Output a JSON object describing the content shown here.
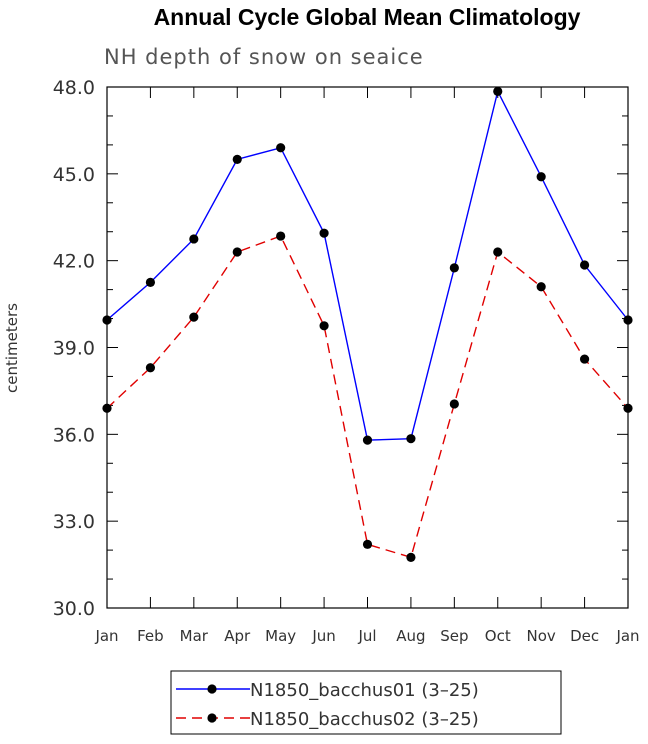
{
  "chart_data": {
    "type": "line",
    "title": "Annual Cycle Global Mean Climatology",
    "subtitle": "NH depth of snow on seaice",
    "xlabel": "",
    "ylabel": "centimeters",
    "ylim": [
      30.0,
      48.0
    ],
    "yticks": [
      "30.0",
      "33.0",
      "36.0",
      "39.0",
      "42.0",
      "45.0",
      "48.0"
    ],
    "ytick_values": [
      30,
      33,
      36,
      39,
      42,
      45,
      48
    ],
    "categories": [
      "Jan",
      "Feb",
      "Mar",
      "Apr",
      "May",
      "Jun",
      "Jul",
      "Aug",
      "Sep",
      "Oct",
      "Nov",
      "Dec",
      "Jan"
    ],
    "grid": false,
    "legend_position": "bottom",
    "series": [
      {
        "name": "N1850_bacchus01 (3–25)",
        "color": "#0000ff",
        "dash": "solid",
        "values": [
          39.95,
          41.25,
          42.75,
          45.5,
          45.9,
          42.95,
          35.8,
          35.85,
          41.75,
          47.85,
          44.9,
          41.85,
          39.95
        ]
      },
      {
        "name": "N1850_bacchus02 (3–25)",
        "color": "#e00000",
        "dash": "dashed",
        "values": [
          36.9,
          38.3,
          40.05,
          42.3,
          42.85,
          39.75,
          32.2,
          31.75,
          37.05,
          42.3,
          41.1,
          38.6,
          36.9
        ]
      }
    ]
  }
}
